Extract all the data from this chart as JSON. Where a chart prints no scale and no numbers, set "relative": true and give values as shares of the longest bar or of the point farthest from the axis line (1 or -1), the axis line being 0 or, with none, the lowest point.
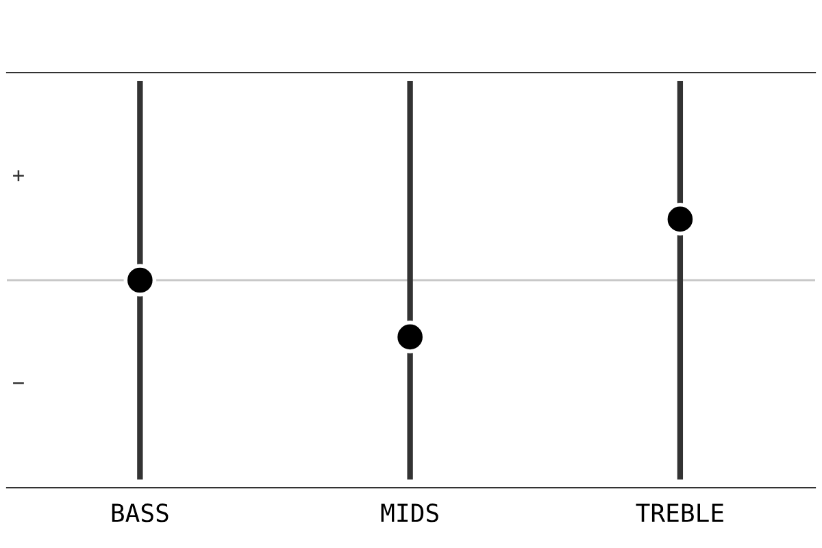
{
  "chart_data": {
    "type": "scatter",
    "relative": true,
    "categories": [
      "BASS",
      "MIDS",
      "TREBLE"
    ],
    "series": [
      {
        "color": "#000000",
        "values": [
          0,
          -0.93,
          1
        ]
      }
    ],
    "marker": "circle",
    "grid": "x",
    "annotations": [
      "+",
      "−"
    ]
  }
}
